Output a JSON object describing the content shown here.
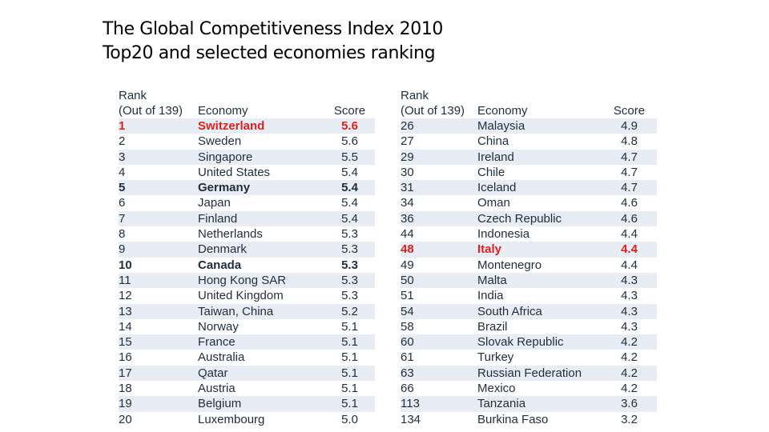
{
  "title": {
    "line1": "The Global Competitiveness Index 2010",
    "line2": "Top20 and selected economies ranking"
  },
  "headers": {
    "rank_line1": "Rank",
    "rank_line2": "(Out of 139)",
    "economy": "Economy",
    "score": "Score"
  },
  "left_rows": [
    {
      "rank": "1",
      "economy": "Switzerland",
      "score": "5.6",
      "style": "hl"
    },
    {
      "rank": "2",
      "economy": "Sweden",
      "score": "5.6",
      "style": ""
    },
    {
      "rank": "3",
      "economy": "Singapore",
      "score": "5.5",
      "style": ""
    },
    {
      "rank": "4",
      "economy": "United States",
      "score": "5.4",
      "style": ""
    },
    {
      "rank": "5",
      "economy": "Germany",
      "score": "5.4",
      "style": "bold"
    },
    {
      "rank": "6",
      "economy": "Japan",
      "score": "5.4",
      "style": ""
    },
    {
      "rank": "7",
      "economy": "Finland",
      "score": "5.4",
      "style": ""
    },
    {
      "rank": "8",
      "economy": "Netherlands",
      "score": "5.3",
      "style": ""
    },
    {
      "rank": "9",
      "economy": "Denmark",
      "score": "5.3",
      "style": ""
    },
    {
      "rank": "10",
      "economy": "Canada",
      "score": "5.3",
      "style": "bold"
    },
    {
      "rank": "11",
      "economy": "Hong Kong SAR",
      "score": "5.3",
      "style": ""
    },
    {
      "rank": "12",
      "economy": "United Kingdom",
      "score": "5.3",
      "style": ""
    },
    {
      "rank": "13",
      "economy": "Taiwan, China",
      "score": "5.2",
      "style": ""
    },
    {
      "rank": "14",
      "economy": "Norway",
      "score": "5.1",
      "style": ""
    },
    {
      "rank": "15",
      "economy": "France",
      "score": "5.1",
      "style": ""
    },
    {
      "rank": "16",
      "economy": "Australia",
      "score": "5.1",
      "style": ""
    },
    {
      "rank": "17",
      "economy": "Qatar",
      "score": "5.1",
      "style": ""
    },
    {
      "rank": "18",
      "economy": "Austria",
      "score": "5.1",
      "style": ""
    },
    {
      "rank": "19",
      "economy": "Belgium",
      "score": "5.1",
      "style": ""
    },
    {
      "rank": "20",
      "economy": "Luxembourg",
      "score": "5.0",
      "style": ""
    }
  ],
  "right_rows": [
    {
      "rank": "26",
      "economy": "Malaysia",
      "score": "4.9",
      "style": ""
    },
    {
      "rank": "27",
      "economy": "China",
      "score": "4.8",
      "style": ""
    },
    {
      "rank": "29",
      "economy": "Ireland",
      "score": "4.7",
      "style": ""
    },
    {
      "rank": "30",
      "economy": "Chile",
      "score": "4.7",
      "style": ""
    },
    {
      "rank": "31",
      "economy": "Iceland",
      "score": "4.7",
      "style": ""
    },
    {
      "rank": "34",
      "economy": "Oman",
      "score": "4.6",
      "style": ""
    },
    {
      "rank": "36",
      "economy": "Czech Republic",
      "score": "4.6",
      "style": ""
    },
    {
      "rank": "44",
      "economy": "Indonesia",
      "score": "4.4",
      "style": ""
    },
    {
      "rank": "48",
      "economy": "Italy",
      "score": "4.4",
      "style": "hl"
    },
    {
      "rank": "49",
      "economy": "Montenegro",
      "score": "4.4",
      "style": ""
    },
    {
      "rank": "50",
      "economy": "Malta",
      "score": "4.3",
      "style": ""
    },
    {
      "rank": "51",
      "economy": "India",
      "score": "4.3",
      "style": ""
    },
    {
      "rank": "54",
      "economy": "South Africa",
      "score": "4.3",
      "style": ""
    },
    {
      "rank": "58",
      "economy": "Brazil",
      "score": "4.3",
      "style": ""
    },
    {
      "rank": "60",
      "economy": "Slovak Republic",
      "score": "4.2",
      "style": ""
    },
    {
      "rank": "61",
      "economy": "Turkey",
      "score": "4.2",
      "style": ""
    },
    {
      "rank": "63",
      "economy": "Russian Federation",
      "score": "4.2",
      "style": ""
    },
    {
      "rank": "66",
      "economy": "Mexico",
      "score": "4.2",
      "style": ""
    },
    {
      "rank": "113",
      "economy": "Tanzania",
      "score": "3.6",
      "style": ""
    },
    {
      "rank": "134",
      "economy": "Burkina Faso",
      "score": "3.2",
      "style": ""
    }
  ]
}
